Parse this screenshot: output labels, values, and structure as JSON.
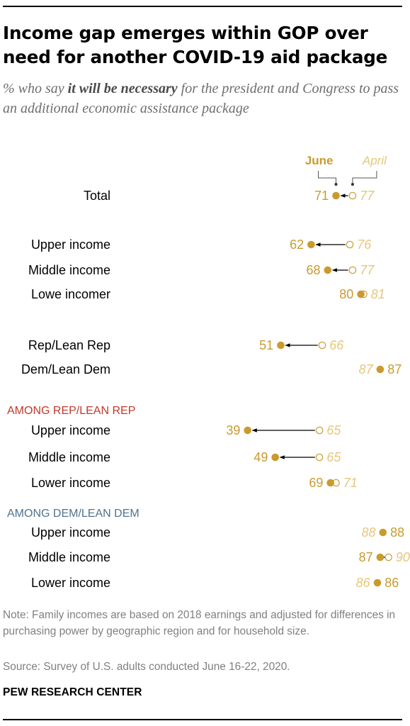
{
  "title": "Income gap emerges within GOP over need for another COVID-19 aid package",
  "subtitle": {
    "before": "% who say ",
    "emphasis": "it will be necessary",
    "after": " for the president and Congress to pass an additional economic assistance package"
  },
  "colors": {
    "june": "#c99b2e",
    "april": "#e6c77a",
    "rep_heading": "#c0392b",
    "dem_heading": "#4f7390",
    "arrow": "#000000"
  },
  "chart_data": {
    "type": "dot",
    "legend": {
      "june": "June",
      "april": "April"
    },
    "xlim": [
      30,
      95
    ],
    "series": [
      {
        "name": "June",
        "style": "filled"
      },
      {
        "name": "April",
        "style": "open"
      }
    ],
    "rows": [
      {
        "kind": "data",
        "label": "Total",
        "june": 71,
        "april": 77
      },
      {
        "kind": "data",
        "label": "Upper income",
        "june": 62,
        "april": 76
      },
      {
        "kind": "data",
        "label": "Middle income",
        "june": 68,
        "april": 77
      },
      {
        "kind": "data",
        "label": "Lowe incomer",
        "june": 80,
        "april": 81
      },
      {
        "kind": "data",
        "label": "Rep/Lean Rep",
        "june": 51,
        "april": 66
      },
      {
        "kind": "data",
        "label": "Dem/Lean Dem",
        "june": 87,
        "april": 87
      },
      {
        "kind": "heading",
        "label": "AMONG REP/LEAN REP",
        "group": "rep"
      },
      {
        "kind": "data",
        "label": "Upper income",
        "june": 39,
        "april": 65
      },
      {
        "kind": "data",
        "label": "Middle income",
        "june": 49,
        "april": 65
      },
      {
        "kind": "data",
        "label": "Lower income",
        "june": 69,
        "april": 71
      },
      {
        "kind": "heading",
        "label": "AMONG DEM/LEAN DEM",
        "group": "dem"
      },
      {
        "kind": "data",
        "label": "Upper income",
        "june": 88,
        "april": 88
      },
      {
        "kind": "data",
        "label": "Middle income",
        "june": 87,
        "april": 90
      },
      {
        "kind": "data",
        "label": "Lower income",
        "june": 86,
        "april": 86
      }
    ]
  },
  "note": "Note: Family incomes are based on 2018 earnings and adjusted for differences in purchasing power by geographic region and for household size.",
  "source": "Source: Survey of U.S. adults conducted June 16-22, 2020.",
  "brand": "PEW RESEARCH CENTER"
}
